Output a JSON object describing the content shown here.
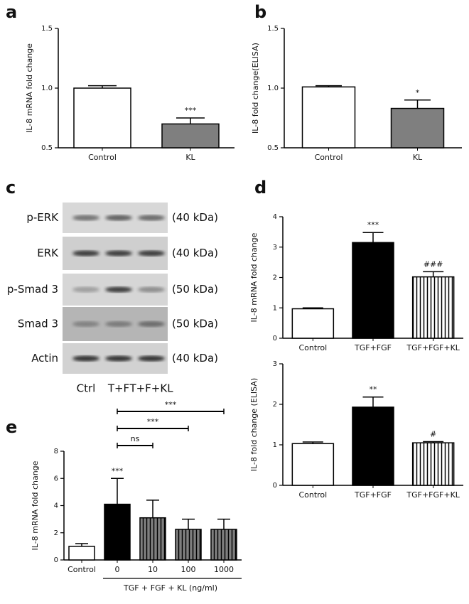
{
  "chart_data": [
    {
      "type": "bar",
      "panel": "a",
      "y_label": "IL-8 mRNA fold change",
      "categories": [
        "Control",
        "KL"
      ],
      "values": [
        1.0,
        0.7
      ],
      "errors": [
        0.02,
        0.05
      ],
      "annotations": [
        null,
        "***"
      ],
      "colors": [
        "#ffffff",
        "#7f7f7f"
      ],
      "hatched": [
        false,
        false
      ],
      "ylim": [
        0.5,
        1.5
      ],
      "yticks": [
        0.5,
        {
          "value": 1,
          "label": "1.0"
        },
        1.5
      ]
    },
    {
      "type": "bar",
      "panel": "b",
      "y_label": "IL-8 fold change(ELISA)",
      "categories": [
        "Control",
        "KL"
      ],
      "values": [
        1.01,
        0.83
      ],
      "errors": [
        0.01,
        0.07
      ],
      "annotations": [
        null,
        "*"
      ],
      "colors": [
        "#ffffff",
        "#7f7f7f"
      ],
      "hatched": [
        false,
        false
      ],
      "ylim": [
        0.5,
        1.5
      ],
      "yticks": [
        0.5,
        {
          "value": 1,
          "label": "1.0"
        },
        1.5
      ]
    },
    {
      "type": "bar",
      "panel": "d",
      "y_label": "IL-8 mRNA fold change",
      "categories": [
        "Control",
        "TGF+FGF",
        "TGF+FGF+KL"
      ],
      "values": [
        0.97,
        3.15,
        2.02
      ],
      "errors": [
        0.03,
        0.33,
        0.17
      ],
      "annotations": [
        null,
        "***",
        "###"
      ],
      "colors": [
        "#ffffff",
        "#000000",
        "#ffffff"
      ],
      "hatched": [
        false,
        false,
        true
      ],
      "ylim": [
        0,
        4
      ],
      "yticks": [
        0,
        1,
        2,
        3,
        4
      ]
    },
    {
      "type": "bar",
      "y_label": "IL-8 fold change (ELISA)",
      "categories": [
        "Control",
        "TGF+FGF",
        "TGF+FGF+KL"
      ],
      "values": [
        1.03,
        1.93,
        1.05
      ],
      "errors": [
        0.04,
        0.25,
        0.03
      ],
      "annotations": [
        null,
        "**",
        "#"
      ],
      "colors": [
        "#ffffff",
        "#000000",
        "#ffffff"
      ],
      "hatched": [
        false,
        false,
        true
      ],
      "ylim": [
        0,
        3
      ],
      "yticks": [
        0,
        1,
        2,
        3
      ]
    },
    {
      "type": "bar",
      "panel": "e",
      "y_label": "IL-8 mRNA fold change",
      "x_label": "TGF + FGF + KL (ng/ml)",
      "categories": [
        "Control",
        "0",
        "10",
        "100",
        "1000"
      ],
      "values": [
        1.0,
        4.1,
        3.1,
        2.25,
        2.25
      ],
      "errors": [
        0.2,
        1.9,
        1.3,
        0.75,
        0.75
      ],
      "annotations": [
        null,
        "***",
        null,
        null,
        null
      ],
      "colors": [
        "#ffffff",
        "#000000",
        "#7f7f7f",
        "#7f7f7f",
        "#7f7f7f"
      ],
      "hatched": [
        false,
        false,
        true,
        true,
        true
      ],
      "ylim": [
        0,
        8
      ],
      "yticks": [
        0,
        2,
        4,
        6,
        8
      ],
      "comparisons": [
        {
          "from": "0",
          "to": "10",
          "label": "ns"
        },
        {
          "from": "0",
          "to": "100",
          "label": "***"
        },
        {
          "from": "0",
          "to": "1000",
          "label": "***"
        }
      ]
    }
  ],
  "blot": {
    "panel": "c",
    "rows": [
      {
        "label": "p-ERK",
        "size": "(40 kDa)"
      },
      {
        "label": "ERK",
        "size": "(40 kDa)"
      },
      {
        "label": "p-Smad 3",
        "size": "(50 kDa)"
      },
      {
        "label": "Smad 3",
        "size": "(50 kDa)"
      },
      {
        "label": "Actin",
        "size": "(40 kDa)"
      }
    ],
    "lanes": [
      "Ctrl",
      "T+F",
      "T+F+KL"
    ]
  }
}
